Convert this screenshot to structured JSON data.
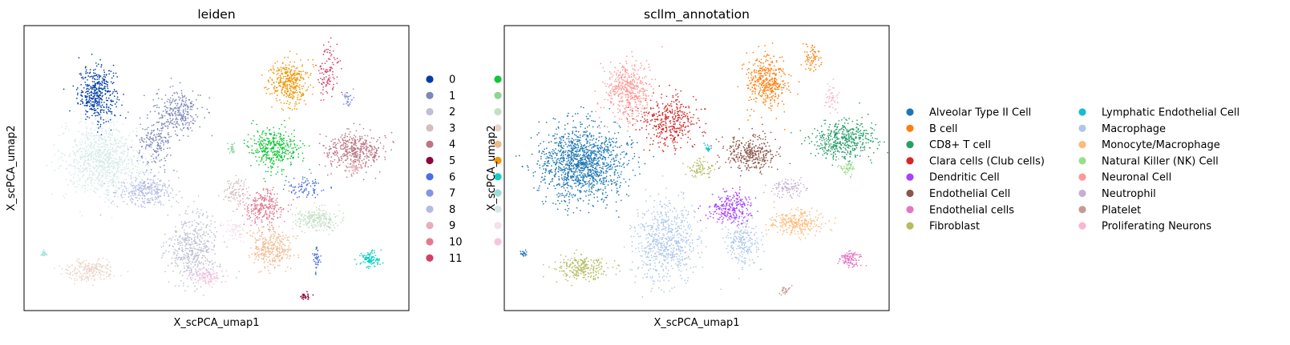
{
  "chart_data": [
    {
      "type": "scatter",
      "title": "leiden",
      "xlabel": "X_scPCA_umap1",
      "ylabel": "X_scPCA_umap2",
      "grid": false,
      "legend_placement": "right",
      "legend": [
        {
          "label": "0",
          "color": "#023fa5"
        },
        {
          "label": "1",
          "color": "#7d87b9"
        },
        {
          "label": "2",
          "color": "#bec1d4"
        },
        {
          "label": "3",
          "color": "#d6bcc0"
        },
        {
          "label": "4",
          "color": "#bb7784"
        },
        {
          "label": "5",
          "color": "#8e063b"
        },
        {
          "label": "6",
          "color": "#4a6fe3"
        },
        {
          "label": "7",
          "color": "#8595e1"
        },
        {
          "label": "8",
          "color": "#b5bbe3"
        },
        {
          "label": "9",
          "color": "#e6afb9"
        },
        {
          "label": "10",
          "color": "#e07b91"
        },
        {
          "label": "11",
          "color": "#d33f6a"
        },
        {
          "label": "",
          "color": "#11c638"
        },
        {
          "label": "",
          "color": "#8dd593"
        },
        {
          "label": "",
          "color": "#c6dec7"
        },
        {
          "label": "",
          "color": "#ead3c6"
        },
        {
          "label": "",
          "color": "#f0b98d"
        },
        {
          "label": "",
          "color": "#ef9708"
        },
        {
          "label": "",
          "color": "#0fcfc0"
        },
        {
          "label": "",
          "color": "#9cded6"
        },
        {
          "label": "",
          "color": "#d5eae7"
        },
        {
          "label": "",
          "color": "#f3e1eb"
        },
        {
          "label": "",
          "color": "#f6c4e1"
        }
      ],
      "clusters": [
        {
          "cx": 0.19,
          "cy": 0.76,
          "rx": 0.045,
          "ry": 0.085,
          "n": 420,
          "color": "#023fa5"
        },
        {
          "cx": 0.4,
          "cy": 0.7,
          "rx": 0.055,
          "ry": 0.075,
          "n": 280,
          "color": "#7d87b9"
        },
        {
          "cx": 0.34,
          "cy": 0.58,
          "rx": 0.04,
          "ry": 0.08,
          "n": 180,
          "color": "#7d87b9"
        },
        {
          "cx": 0.44,
          "cy": 0.22,
          "rx": 0.06,
          "ry": 0.11,
          "n": 500,
          "color": "#bec1d4"
        },
        {
          "cx": 0.55,
          "cy": 0.42,
          "rx": 0.03,
          "ry": 0.04,
          "n": 90,
          "color": "#d6bcc0"
        },
        {
          "cx": 0.86,
          "cy": 0.56,
          "rx": 0.07,
          "ry": 0.06,
          "n": 420,
          "color": "#bb7784"
        },
        {
          "cx": 0.73,
          "cy": 0.05,
          "rx": 0.01,
          "ry": 0.012,
          "n": 30,
          "color": "#8e063b"
        },
        {
          "cx": 0.73,
          "cy": 0.43,
          "rx": 0.05,
          "ry": 0.03,
          "n": 80,
          "color": "#4a6fe3"
        },
        {
          "cx": 0.76,
          "cy": 0.19,
          "rx": 0.006,
          "ry": 0.05,
          "n": 40,
          "color": "#4a6fe3"
        },
        {
          "cx": 0.84,
          "cy": 0.74,
          "rx": 0.012,
          "ry": 0.03,
          "n": 40,
          "color": "#8595e1"
        },
        {
          "cx": 0.32,
          "cy": 0.42,
          "rx": 0.07,
          "ry": 0.05,
          "n": 300,
          "color": "#b5bbe3"
        },
        {
          "cx": 0.86,
          "cy": 0.5,
          "rx": 0.018,
          "ry": 0.02,
          "n": 40,
          "color": "#e6afb9"
        },
        {
          "cx": 0.62,
          "cy": 0.36,
          "rx": 0.05,
          "ry": 0.06,
          "n": 260,
          "color": "#e07b91"
        },
        {
          "cx": 0.79,
          "cy": 0.85,
          "rx": 0.025,
          "ry": 0.08,
          "n": 110,
          "color": "#d33f6a"
        },
        {
          "cx": 0.65,
          "cy": 0.57,
          "rx": 0.06,
          "ry": 0.06,
          "n": 380,
          "color": "#11c638"
        },
        {
          "cx": 0.54,
          "cy": 0.57,
          "rx": 0.01,
          "ry": 0.015,
          "n": 25,
          "color": "#8dd593"
        },
        {
          "cx": 0.76,
          "cy": 0.32,
          "rx": 0.055,
          "ry": 0.035,
          "n": 240,
          "color": "#c6dec7"
        },
        {
          "cx": 0.17,
          "cy": 0.14,
          "rx": 0.055,
          "ry": 0.035,
          "n": 220,
          "color": "#ead3c6"
        },
        {
          "cx": 0.64,
          "cy": 0.22,
          "rx": 0.05,
          "ry": 0.06,
          "n": 300,
          "color": "#f0b98d"
        },
        {
          "cx": 0.69,
          "cy": 0.8,
          "rx": 0.045,
          "ry": 0.07,
          "n": 380,
          "color": "#ef9708"
        },
        {
          "cx": 0.9,
          "cy": 0.18,
          "rx": 0.025,
          "ry": 0.022,
          "n": 110,
          "color": "#0fcfc0"
        },
        {
          "cx": 0.05,
          "cy": 0.2,
          "rx": 0.008,
          "ry": 0.01,
          "n": 20,
          "color": "#9cded6"
        },
        {
          "cx": 0.2,
          "cy": 0.53,
          "rx": 0.09,
          "ry": 0.11,
          "n": 900,
          "color": "#d5eae7"
        },
        {
          "cx": 0.55,
          "cy": 0.28,
          "rx": 0.03,
          "ry": 0.03,
          "n": 70,
          "color": "#f3e1eb"
        },
        {
          "cx": 0.48,
          "cy": 0.12,
          "rx": 0.035,
          "ry": 0.025,
          "n": 110,
          "color": "#f6c4e1"
        }
      ]
    },
    {
      "type": "scatter",
      "title": "scllm_annotation",
      "xlabel": "X_scPCA_umap1",
      "ylabel": "X_scPCA_umap2",
      "grid": false,
      "legend_placement": "right",
      "legend": [
        {
          "label": "Alveolar Type II Cell",
          "color": "#1f77b4"
        },
        {
          "label": "B cell",
          "color": "#ff7f0e"
        },
        {
          "label": "CD8+ T cell",
          "color": "#279e68"
        },
        {
          "label": "Clara cells (Club cells)",
          "color": "#d62728"
        },
        {
          "label": "Dendritic Cell",
          "color": "#aa40fc"
        },
        {
          "label": "Endothelial Cell",
          "color": "#8c564b"
        },
        {
          "label": "Endothelial cells",
          "color": "#e377c2"
        },
        {
          "label": "Fibroblast",
          "color": "#b5bd61"
        },
        {
          "label": "Lymphatic Endothelial Cell",
          "color": "#17becf"
        },
        {
          "label": "Macrophage",
          "color": "#aec7e8"
        },
        {
          "label": "Monocyte/Macrophage",
          "color": "#ffbb78"
        },
        {
          "label": "Natural Killer (NK) Cell",
          "color": "#98df8a"
        },
        {
          "label": "Neuronal Cell",
          "color": "#ff9896"
        },
        {
          "label": "Neutrophil",
          "color": "#c5b0d5"
        },
        {
          "label": "Platelet",
          "color": "#c49c94"
        },
        {
          "label": "Proliferating Neurons",
          "color": "#f7b6d2"
        }
      ],
      "clusters": [
        {
          "cx": 0.2,
          "cy": 0.52,
          "rx": 0.1,
          "ry": 0.12,
          "n": 1300,
          "color": "#1f77b4"
        },
        {
          "cx": 0.05,
          "cy": 0.2,
          "rx": 0.008,
          "ry": 0.01,
          "n": 20,
          "color": "#1f77b4"
        },
        {
          "cx": 0.68,
          "cy": 0.8,
          "rx": 0.05,
          "ry": 0.08,
          "n": 400,
          "color": "#ff7f0e"
        },
        {
          "cx": 0.8,
          "cy": 0.89,
          "rx": 0.02,
          "ry": 0.05,
          "n": 70,
          "color": "#ff7f0e"
        },
        {
          "cx": 0.88,
          "cy": 0.6,
          "rx": 0.08,
          "ry": 0.06,
          "n": 450,
          "color": "#279e68"
        },
        {
          "cx": 0.43,
          "cy": 0.66,
          "rx": 0.07,
          "ry": 0.08,
          "n": 380,
          "color": "#d62728"
        },
        {
          "cx": 0.59,
          "cy": 0.36,
          "rx": 0.05,
          "ry": 0.05,
          "n": 250,
          "color": "#aa40fc"
        },
        {
          "cx": 0.64,
          "cy": 0.55,
          "rx": 0.06,
          "ry": 0.06,
          "n": 330,
          "color": "#8c564b"
        },
        {
          "cx": 0.9,
          "cy": 0.18,
          "rx": 0.025,
          "ry": 0.022,
          "n": 110,
          "color": "#e377c2"
        },
        {
          "cx": 0.2,
          "cy": 0.15,
          "rx": 0.06,
          "ry": 0.04,
          "n": 240,
          "color": "#b5bd61"
        },
        {
          "cx": 0.51,
          "cy": 0.5,
          "rx": 0.03,
          "ry": 0.03,
          "n": 80,
          "color": "#b5bd61"
        },
        {
          "cx": 0.53,
          "cy": 0.57,
          "rx": 0.01,
          "ry": 0.012,
          "n": 20,
          "color": "#17becf"
        },
        {
          "cx": 0.42,
          "cy": 0.24,
          "rx": 0.075,
          "ry": 0.13,
          "n": 650,
          "color": "#aec7e8"
        },
        {
          "cx": 0.62,
          "cy": 0.24,
          "rx": 0.04,
          "ry": 0.07,
          "n": 220,
          "color": "#aec7e8"
        },
        {
          "cx": 0.76,
          "cy": 0.31,
          "rx": 0.06,
          "ry": 0.04,
          "n": 260,
          "color": "#ffbb78"
        },
        {
          "cx": 0.89,
          "cy": 0.5,
          "rx": 0.018,
          "ry": 0.025,
          "n": 50,
          "color": "#98df8a"
        },
        {
          "cx": 0.32,
          "cy": 0.77,
          "rx": 0.055,
          "ry": 0.09,
          "n": 450,
          "color": "#ff9896"
        },
        {
          "cx": 0.74,
          "cy": 0.43,
          "rx": 0.04,
          "ry": 0.03,
          "n": 100,
          "color": "#c5b0d5"
        },
        {
          "cx": 0.73,
          "cy": 0.07,
          "rx": 0.01,
          "ry": 0.015,
          "n": 25,
          "color": "#c49c94"
        },
        {
          "cx": 0.85,
          "cy": 0.74,
          "rx": 0.015,
          "ry": 0.04,
          "n": 50,
          "color": "#f7b6d2"
        }
      ]
    }
  ]
}
